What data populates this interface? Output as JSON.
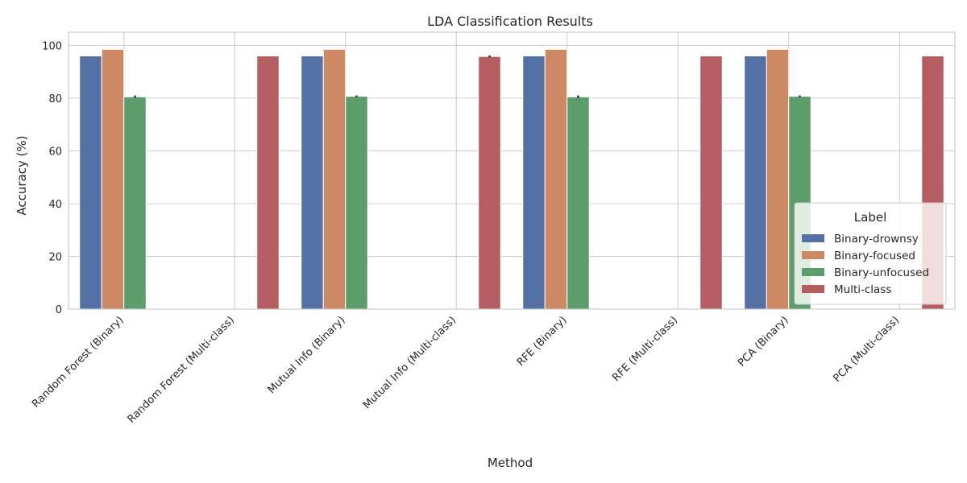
{
  "chart_data": {
    "type": "bar",
    "title": "LDA Classification Results",
    "xlabel": "Method",
    "ylabel": "Accuracy (%)",
    "ylim": [
      0,
      105
    ],
    "yticks": [
      0,
      20,
      40,
      60,
      80,
      100
    ],
    "grid": true,
    "legend_title": "Label",
    "legend_position": "lower-right",
    "categories": [
      "Random Forest (Binary)",
      "Random Forest (Multi-class)",
      "Mutual Info (Binary)",
      "Mutual Info (Multi-class)",
      "RFE (Binary)",
      "RFE (Multi-class)",
      "PCA (Binary)",
      "PCA (Multi-class)"
    ],
    "series": [
      {
        "name": "Binary-drownsy",
        "color": "#5471a6",
        "values": [
          96,
          null,
          96,
          null,
          96,
          null,
          96,
          null
        ]
      },
      {
        "name": "Binary-focused",
        "color": "#cc8963",
        "values": [
          98.5,
          null,
          98.5,
          null,
          98.5,
          null,
          98.5,
          null
        ]
      },
      {
        "name": "Binary-unfocused",
        "color": "#5b9e6c",
        "values": [
          80.5,
          null,
          80.7,
          null,
          80.5,
          null,
          80.7,
          null
        ]
      },
      {
        "name": "Multi-class",
        "color": "#b55d60",
        "values": [
          null,
          96,
          null,
          95.8,
          null,
          96,
          null,
          96
        ]
      }
    ],
    "error_bars": [
      {
        "series": "Binary-unfocused",
        "category": "Random Forest (Binary)",
        "low": 80.0,
        "high": 81.0
      },
      {
        "series": "Binary-unfocused",
        "category": "Mutual Info (Binary)",
        "low": 80.3,
        "high": 81.0
      },
      {
        "series": "Binary-unfocused",
        "category": "RFE (Binary)",
        "low": 80.0,
        "high": 81.0
      },
      {
        "series": "Binary-unfocused",
        "category": "PCA (Binary)",
        "low": 80.3,
        "high": 81.0
      },
      {
        "series": "Multi-class",
        "category": "Mutual Info (Multi-class)",
        "low": 95.4,
        "high": 96.2
      }
    ]
  }
}
